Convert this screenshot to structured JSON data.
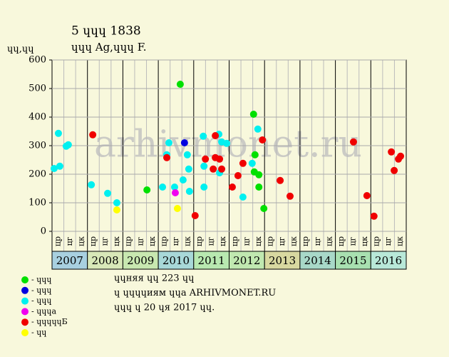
{
  "chart_data": {
    "type": "scatter",
    "title": "5 ɥɥɥ 1838",
    "subtitle": "ɥɥɥ Ag,ɥɥɥ F.",
    "y_label": "ɥɥ,ɥɥ",
    "watermark": "arhivmonet.ru",
    "xlim": [
      2007,
      2017
    ],
    "ylim": [
      0,
      600
    ],
    "yticks": [
      0,
      100,
      200,
      300,
      400,
      500,
      600
    ],
    "grid": true,
    "years": [
      "2007",
      "2008",
      "2009",
      "2010",
      "2011",
      "2012",
      "2013",
      "2014",
      "2015",
      "2016"
    ],
    "year_colors": [
      "#a8d0e0",
      "#d8e8b8",
      "#c8e8b0",
      "#a8d8d8",
      "#b8e8b0",
      "#c0e8b0",
      "#d8d8a0",
      "#a8d8c8",
      "#a8e0b0",
      "#b8e8d8"
    ],
    "sub_labels": [
      "цр",
      "цг",
      "цк"
    ],
    "notes": [
      "ɥɥняя ɥɥ 223 ɥɥ",
      "ɥ ɥɥɥɥиям ɥɥа ARHIVMONET.RU",
      "ɥɥɥ ɥ 20 ɥя 2017 ɥɥ."
    ],
    "series": [
      {
        "name": "- ɥɥɥ",
        "color": "#00e000",
        "x": [
          2009.68,
          2010.62,
          2012.69,
          2012.73,
          2012.71,
          2012.84,
          2012.84,
          2012.98
        ],
        "values": [
          145,
          515,
          410,
          268,
          208,
          198,
          155,
          80
        ]
      },
      {
        "name": "- ɥɥɥ",
        "color": "#0000e0",
        "x": [
          2010.74
        ],
        "values": [
          310
        ]
      },
      {
        "name": "- ɥɥɥ",
        "color": "#00f0f0",
        "x": [
          2007.06,
          2007.18,
          2007.22,
          2007.4,
          2007.46,
          2008.11,
          2008.57,
          2008.83,
          2010.12,
          2010.24,
          2010.3,
          2010.46,
          2010.7,
          2010.82,
          2010.86,
          2010.88,
          2011.27,
          2011.29,
          2011.29,
          2011.71,
          2011.73,
          2011.79,
          2011.93,
          2012.39,
          2012.65,
          2012.81
        ],
        "values": [
          220,
          343,
          228,
          298,
          303,
          163,
          133,
          100,
          155,
          268,
          310,
          155,
          180,
          268,
          218,
          140,
          333,
          228,
          155,
          340,
          205,
          313,
          308,
          120,
          238,
          358
        ]
      },
      {
        "name": "- ɥɥɥa",
        "color": "#f000f0",
        "x": [
          2010.48
        ],
        "values": [
          135
        ]
      },
      {
        "name": "- ɥɥɥɥɥБ",
        "color": "#f00000",
        "x": [
          2008.15,
          2010.24,
          2011.04,
          2011.33,
          2011.55,
          2011.61,
          2011.61,
          2011.73,
          2011.79,
          2012.09,
          2012.25,
          2012.39,
          2012.94,
          2013.44,
          2013.72,
          2015.51,
          2015.89,
          2016.09,
          2016.58,
          2016.66,
          2016.78,
          2016.84
        ],
        "values": [
          338,
          258,
          55,
          253,
          218,
          335,
          258,
          253,
          218,
          155,
          195,
          238,
          320,
          178,
          123,
          313,
          125,
          53,
          278,
          213,
          253,
          263
        ]
      },
      {
        "name": "- ɥɥ",
        "color": "#ffff00",
        "x": [
          2008.83,
          2010.54
        ],
        "values": [
          75,
          80
        ]
      }
    ]
  }
}
